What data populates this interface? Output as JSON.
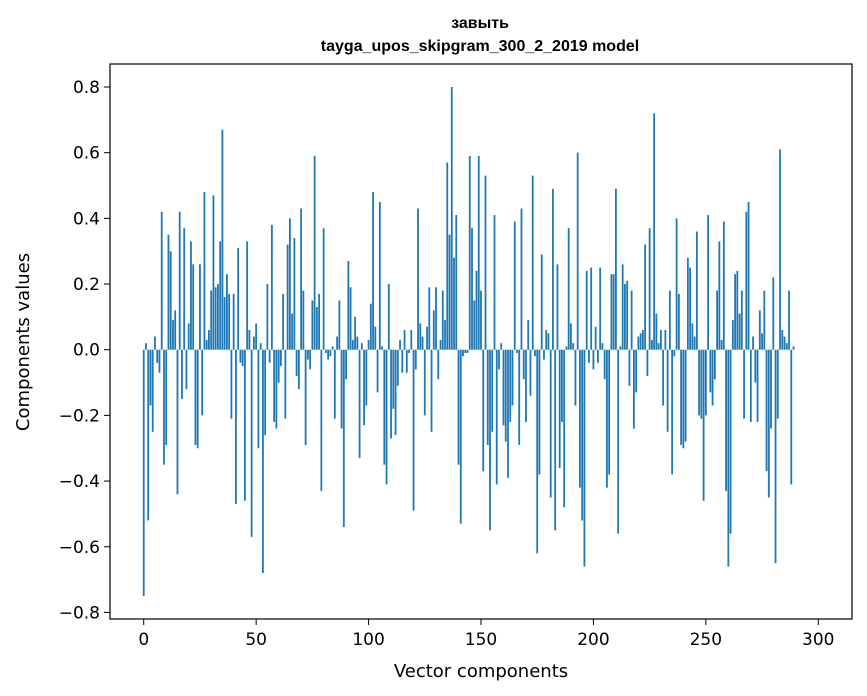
{
  "chart_data": {
    "type": "bar",
    "title": "завыть",
    "subtitle": "tayga_upos_skipgram_300_2_2019 model",
    "xlabel": "Vector components",
    "ylabel": "Components values",
    "xlim": [
      -15,
      315
    ],
    "ylim": [
      -0.82,
      0.87
    ],
    "xticks": [
      0,
      50,
      100,
      150,
      200,
      250,
      300
    ],
    "yticks": [
      -0.8,
      -0.6,
      -0.4,
      -0.2,
      0.0,
      0.2,
      0.4,
      0.6,
      0.8
    ],
    "ytick_labels": [
      "−0.8",
      "−0.6",
      "−0.4",
      "−0.2",
      "0.0",
      "0.2",
      "0.4",
      "0.6",
      "0.8"
    ],
    "bar_color": "#1f77b4",
    "values": [
      -0.75,
      0.02,
      -0.52,
      -0.17,
      -0.25,
      0.04,
      -0.04,
      -0.07,
      0.42,
      -0.35,
      -0.29,
      0.35,
      0.3,
      0.09,
      0.12,
      -0.44,
      0.42,
      -0.15,
      0.37,
      -0.12,
      0.08,
      0.33,
      0.26,
      -0.29,
      -0.3,
      0.26,
      -0.2,
      0.48,
      0.03,
      0.06,
      0.18,
      0.47,
      0.19,
      0.2,
      0.33,
      0.67,
      0.16,
      0.23,
      0.17,
      -0.21,
      0.17,
      -0.47,
      0.31,
      -0.04,
      -0.05,
      -0.46,
      0.33,
      0.06,
      -0.57,
      0.04,
      0.08,
      -0.3,
      0.02,
      -0.68,
      -0.26,
      0.2,
      -0.04,
      0.38,
      -0.22,
      -0.24,
      -0.1,
      -0.05,
      0.17,
      -0.21,
      0.32,
      0.4,
      0.11,
      0.34,
      -0.08,
      -0.12,
      0.43,
      0.18,
      -0.29,
      -0.03,
      -0.06,
      0.15,
      0.59,
      0.13,
      0.17,
      -0.43,
      0.37,
      -0.01,
      -0.03,
      -0.02,
      0.01,
      -0.21,
      0.04,
      0.15,
      -0.24,
      -0.54,
      -0.09,
      0.27,
      0.19,
      0.03,
      0.1,
      0.04,
      -0.33,
      0.02,
      -0.23,
      -0.17,
      0.03,
      0.14,
      0.48,
      0.07,
      -0.13,
      0.45,
      0.01,
      -0.35,
      -0.41,
      0.2,
      -0.27,
      -0.18,
      -0.26,
      -0.11,
      0.03,
      -0.07,
      0.06,
      -0.07,
      -0.01,
      0.06,
      -0.49,
      -0.06,
      0.43,
      0.08,
      0.04,
      -0.2,
      0.07,
      0.19,
      -0.25,
      0.12,
      0.19,
      -0.09,
      0.03,
      0.18,
      0.09,
      0.57,
      0.35,
      0.8,
      0.28,
      0.41,
      -0.35,
      -0.53,
      -0.02,
      -0.01,
      -0.01,
      0.59,
      0.37,
      0.15,
      0.24,
      0.59,
      0.18,
      -0.37,
      0.53,
      -0.29,
      -0.55,
      -0.25,
      0.41,
      -0.41,
      -0.06,
      0.02,
      -0.23,
      -0.28,
      -0.39,
      -0.22,
      -0.17,
      0.39,
      -0.01,
      -0.29,
      0.43,
      -0.09,
      -0.22,
      0.09,
      -0.14,
      0.53,
      -0.02,
      -0.62,
      -0.38,
      0.29,
      -0.03,
      0.06,
      0.05,
      -0.45,
      0.49,
      -0.55,
      0.26,
      -0.36,
      -0.22,
      -0.48,
      0.01,
      0.37,
      0.08,
      0.02,
      -0.17,
      0.6,
      -0.42,
      -0.52,
      -0.66,
      0.24,
      -0.04,
      0.25,
      -0.06,
      0.07,
      -0.04,
      0.25,
      0.02,
      -0.09,
      -0.42,
      -0.38,
      0.23,
      0.23,
      0.49,
      -0.56,
      0.01,
      0.26,
      0.2,
      0.21,
      -0.11,
      0.18,
      -0.24,
      -0.13,
      0.04,
      0.05,
      0.06,
      0.32,
      -0.08,
      0.37,
      0.03,
      0.72,
      0.11,
      0.02,
      0.06,
      -0.17,
      0.06,
      -0.25,
      0.18,
      -0.38,
      -0.02,
      0.4,
      0.17,
      -0.29,
      -0.3,
      -0.28,
      0.28,
      0.25,
      0.08,
      0.04,
      0.36,
      -0.2,
      -0.21,
      -0.46,
      -0.2,
      0.41,
      -0.13,
      -0.17,
      -0.09,
      0.18,
      0.33,
      0.03,
      0.39,
      -0.43,
      -0.66,
      -0.56,
      0.09,
      0.23,
      0.24,
      0.11,
      0.18,
      -0.21,
      0.42,
      0.45,
      -0.22,
      0.04,
      -0.1,
      -0.22,
      0.12,
      0.05,
      0.18,
      -0.37,
      -0.45,
      -0.24,
      0.22,
      -0.65,
      -0.21,
      0.61,
      0.06,
      0.04,
      0.02,
      0.18,
      -0.41,
      0.01
    ]
  }
}
